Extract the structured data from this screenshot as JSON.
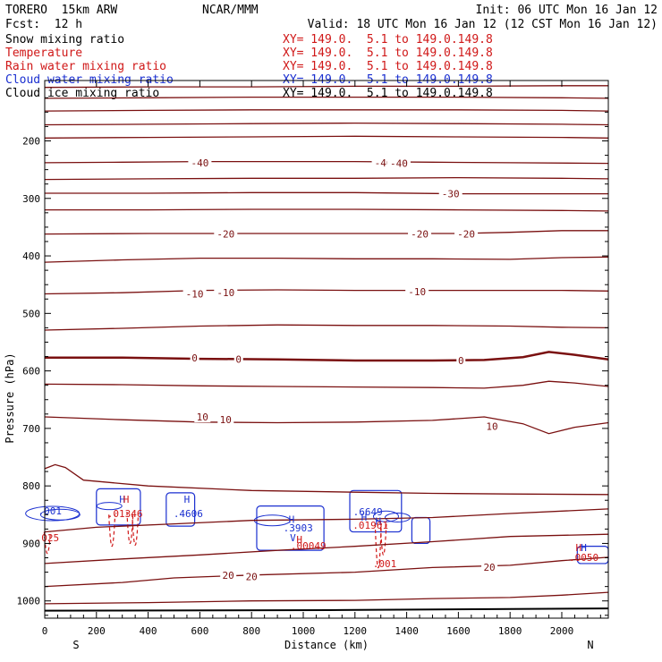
{
  "header": {
    "model": "TORERO  15km ARW",
    "org": "NCAR/MMM",
    "init": "Init: 06 UTC Mon 16 Jan 12",
    "fcst": "Fcst:  12 h",
    "valid": "Valid: 18 UTC Mon 16 Jan 12 (12 CST Mon 16 Jan 12)"
  },
  "legend": [
    {
      "label": "Snow mixing ratio",
      "xy": "XY= 149.0.  5.1 to 149.0.149.8",
      "color": "#000000"
    },
    {
      "label": "Temperature",
      "xy": "XY= 149.0.  5.1 to 149.0.149.8",
      "color": "#d01818"
    },
    {
      "label": "Rain water mixing ratio",
      "xy": "XY= 149.0.  5.1 to 149.0.149.8",
      "color": "#d01818"
    },
    {
      "label": "Cloud water mixing ratio",
      "xy": "XY= 149.0.  5.1 to 149.0.149.8",
      "color": "#1a2fd0"
    },
    {
      "label": "Cloud ice mixing ratio",
      "xy": "XY= 149.0.  5.1 to 149.0.149.8",
      "color": "#000000"
    }
  ],
  "chart_data": {
    "type": "line",
    "title": "Vertical cross section",
    "xlabel": "Distance (km)",
    "ylabel": "Pressure (hPa)",
    "xlim": [
      0,
      2180
    ],
    "ylim": [
      1030,
      95
    ],
    "x_ticks": [
      0,
      200,
      400,
      600,
      800,
      1000,
      1200,
      1400,
      1600,
      1800,
      2000
    ],
    "y_ticks": [
      200,
      300,
      400,
      500,
      600,
      700,
      800,
      900,
      1000
    ],
    "x_tick_labels": [
      "0",
      "200",
      "400",
      "600",
      "800",
      "1000",
      "1200",
      "1400",
      "1600",
      "1800",
      "2000"
    ],
    "y_tick_labels": [
      "200",
      "300",
      "400",
      "500",
      "600",
      "700",
      "800",
      "900",
      "1000"
    ],
    "endpoints": {
      "left": "S",
      "right": "N"
    },
    "temperature_isotherms": [
      {
        "t": -60,
        "p": [
          [
            0,
            107
          ],
          [
            400,
            106
          ],
          [
            800,
            106
          ],
          [
            1200,
            105
          ],
          [
            1600,
            105
          ],
          [
            2000,
            104
          ],
          [
            2180,
            104
          ]
        ]
      },
      {
        "t": -55,
        "p": [
          [
            0,
            126
          ],
          [
            400,
            125
          ],
          [
            800,
            124
          ],
          [
            1200,
            124
          ],
          [
            1600,
            124
          ],
          [
            2000,
            125
          ],
          [
            2180,
            126
          ]
        ]
      },
      {
        "t": -50,
        "p": [
          [
            0,
            148
          ],
          [
            400,
            147
          ],
          [
            800,
            146
          ],
          [
            1200,
            146
          ],
          [
            1600,
            146
          ],
          [
            2000,
            147
          ],
          [
            2180,
            148
          ]
        ]
      },
      {
        "t": -50,
        "p": [
          [
            0,
            172
          ],
          [
            400,
            171
          ],
          [
            800,
            170
          ],
          [
            1200,
            169
          ],
          [
            1600,
            170
          ],
          [
            2000,
            171
          ],
          [
            2180,
            172
          ]
        ]
      },
      {
        "t": -45,
        "p": [
          [
            0,
            195
          ],
          [
            400,
            194
          ],
          [
            800,
            193
          ],
          [
            1200,
            192
          ],
          [
            1600,
            193
          ],
          [
            2000,
            194
          ],
          [
            2180,
            195
          ]
        ]
      },
      {
        "t": -40,
        "p": [
          [
            0,
            238
          ],
          [
            300,
            237
          ],
          [
            600,
            236
          ],
          [
            900,
            236
          ],
          [
            1200,
            236
          ],
          [
            1500,
            237
          ],
          [
            1800,
            238
          ],
          [
            2180,
            239
          ]
        ]
      },
      {
        "t": -35,
        "p": [
          [
            0,
            267
          ],
          [
            400,
            266
          ],
          [
            800,
            265
          ],
          [
            1200,
            265
          ],
          [
            1600,
            264
          ],
          [
            2000,
            265
          ],
          [
            2180,
            266
          ]
        ]
      },
      {
        "t": -30,
        "p": [
          [
            0,
            291
          ],
          [
            400,
            291
          ],
          [
            800,
            290
          ],
          [
            1200,
            290
          ],
          [
            1600,
            292
          ],
          [
            2000,
            292
          ],
          [
            2180,
            292
          ]
        ]
      },
      {
        "t": -25,
        "p": [
          [
            0,
            320
          ],
          [
            400,
            320
          ],
          [
            800,
            319
          ],
          [
            1200,
            319
          ],
          [
            1600,
            320
          ],
          [
            2000,
            321
          ],
          [
            2180,
            322
          ]
        ]
      },
      {
        "t": -20,
        "p": [
          [
            0,
            362
          ],
          [
            400,
            361
          ],
          [
            800,
            361
          ],
          [
            1200,
            361
          ],
          [
            1600,
            361
          ],
          [
            1800,
            359
          ],
          [
            2000,
            356
          ],
          [
            2180,
            356
          ]
        ]
      },
      {
        "t": -15,
        "p": [
          [
            0,
            411
          ],
          [
            300,
            407
          ],
          [
            600,
            404
          ],
          [
            900,
            404
          ],
          [
            1200,
            405
          ],
          [
            1500,
            405
          ],
          [
            1800,
            406
          ],
          [
            2000,
            403
          ],
          [
            2180,
            402
          ]
        ]
      },
      {
        "t": -10,
        "p": [
          [
            0,
            466
          ],
          [
            300,
            464
          ],
          [
            600,
            460
          ],
          [
            900,
            459
          ],
          [
            1200,
            460
          ],
          [
            1500,
            460
          ],
          [
            1800,
            460
          ],
          [
            2000,
            460
          ],
          [
            2180,
            461
          ]
        ]
      },
      {
        "t": -5,
        "p": [
          [
            0,
            529
          ],
          [
            300,
            526
          ],
          [
            600,
            522
          ],
          [
            900,
            520
          ],
          [
            1200,
            521
          ],
          [
            1500,
            521
          ],
          [
            1800,
            522
          ],
          [
            2000,
            524
          ],
          [
            2180,
            525
          ]
        ]
      },
      {
        "t": 0,
        "p": [
          [
            0,
            577
          ],
          [
            300,
            577
          ],
          [
            600,
            579
          ],
          [
            900,
            580
          ],
          [
            1200,
            582
          ],
          [
            1500,
            582
          ],
          [
            1700,
            581
          ],
          [
            1850,
            576
          ],
          [
            1950,
            567
          ],
          [
            2050,
            572
          ],
          [
            2180,
            580
          ]
        ]
      },
      {
        "t": 5,
        "p": [
          [
            0,
            623
          ],
          [
            300,
            624
          ],
          [
            600,
            626
          ],
          [
            900,
            627
          ],
          [
            1200,
            628
          ],
          [
            1500,
            629
          ],
          [
            1700,
            630
          ],
          [
            1850,
            625
          ],
          [
            1950,
            618
          ],
          [
            2050,
            621
          ],
          [
            2180,
            627
          ]
        ]
      },
      {
        "t": 10,
        "p": [
          [
            0,
            680
          ],
          [
            300,
            685
          ],
          [
            600,
            689
          ],
          [
            900,
            690
          ],
          [
            1200,
            689
          ],
          [
            1500,
            686
          ],
          [
            1700,
            680
          ],
          [
            1850,
            692
          ],
          [
            1950,
            709
          ],
          [
            2050,
            698
          ],
          [
            2180,
            690
          ]
        ]
      },
      {
        "t": 15,
        "p": [
          [
            0,
            770
          ],
          [
            40,
            763
          ],
          [
            80,
            768
          ],
          [
            150,
            790
          ],
          [
            400,
            800
          ],
          [
            800,
            808
          ],
          [
            1200,
            811
          ],
          [
            1500,
            813
          ],
          [
            1800,
            814
          ],
          [
            2180,
            815
          ]
        ]
      },
      {
        "t": 20,
        "p": [
          [
            0,
            880
          ],
          [
            200,
            872
          ],
          [
            500,
            866
          ],
          [
            800,
            860
          ],
          [
            1200,
            858
          ],
          [
            1500,
            855
          ],
          [
            1800,
            848
          ],
          [
            2180,
            840
          ]
        ]
      },
      {
        "t": 25,
        "p": [
          [
            0,
            935
          ],
          [
            300,
            927
          ],
          [
            600,
            920
          ],
          [
            900,
            912
          ],
          [
            1200,
            905
          ],
          [
            1500,
            897
          ],
          [
            1800,
            888
          ],
          [
            2180,
            884
          ]
        ]
      },
      {
        "t": 20,
        "p": [
          [
            0,
            975
          ],
          [
            300,
            968
          ],
          [
            500,
            960
          ],
          [
            800,
            955
          ],
          [
            1200,
            950
          ],
          [
            1500,
            942
          ],
          [
            1800,
            938
          ],
          [
            2000,
            930
          ],
          [
            2180,
            924
          ]
        ]
      },
      {
        "t": 25,
        "p": [
          [
            0,
            1005
          ],
          [
            400,
            1003
          ],
          [
            800,
            1000
          ],
          [
            1200,
            999
          ],
          [
            1500,
            996
          ],
          [
            1800,
            994
          ],
          [
            2000,
            990
          ],
          [
            2180,
            985
          ]
        ]
      }
    ],
    "temperature_labels": [
      {
        "text": "-40",
        "x": 600,
        "p": 238
      },
      {
        "text": "-40",
        "x": 1310,
        "p": 238
      },
      {
        "text": "-40",
        "x": 1370,
        "p": 239
      },
      {
        "text": "-30",
        "x": 1570,
        "p": 292
      },
      {
        "text": "-20",
        "x": 700,
        "p": 362
      },
      {
        "text": "-20",
        "x": 1450,
        "p": 362
      },
      {
        "text": "-20",
        "x": 1630,
        "p": 362
      },
      {
        "text": "-10",
        "x": 580,
        "p": 466
      },
      {
        "text": "-10",
        "x": 700,
        "p": 464
      },
      {
        "text": "-10",
        "x": 1440,
        "p": 462
      },
      {
        "text": "0",
        "x": 580,
        "p": 577
      },
      {
        "text": "0",
        "x": 750,
        "p": 580
      },
      {
        "text": "0",
        "x": 1610,
        "p": 582
      },
      {
        "text": "10",
        "x": 610,
        "p": 680
      },
      {
        "text": "10",
        "x": 700,
        "p": 685
      },
      {
        "text": "10",
        "x": 1730,
        "p": 696
      },
      {
        "text": "20",
        "x": 710,
        "p": 955
      },
      {
        "text": "20",
        "x": 800,
        "p": 958
      },
      {
        "text": "20",
        "x": 1720,
        "p": 941
      }
    ],
    "cloud_water_labels": [
      {
        "text": ".001",
        "x": 20,
        "p": 843
      },
      {
        "text": "H",
        "x": 300,
        "p": 823
      },
      {
        "text": "H",
        "x": 550,
        "p": 823
      },
      {
        "text": ".4606",
        "x": 555,
        "p": 848
      },
      {
        "text": "H",
        "x": 955,
        "p": 858
      },
      {
        "text": ".3903",
        "x": 980,
        "p": 873
      },
      {
        "text": "V",
        "x": 960,
        "p": 890
      },
      {
        "text": "H",
        "x": 1235,
        "p": 854
      },
      {
        "text": ".6649",
        "x": 1250,
        "p": 845
      },
      {
        "text": "H",
        "x": 1290,
        "p": 861
      },
      {
        "text": "H",
        "x": 2085,
        "p": 907
      }
    ],
    "rain_labels": [
      {
        "text": "H",
        "x": 315,
        "p": 823
      },
      {
        "text": ".01346",
        "x": 310,
        "p": 848
      },
      {
        "text": ".025",
        "x": 10,
        "p": 890
      },
      {
        "text": "H",
        "x": 985,
        "p": 893
      },
      {
        "text": ".00049",
        "x": 1020,
        "p": 904
      },
      {
        "text": ".01961",
        "x": 1260,
        "p": 868
      },
      {
        "text": ".001",
        "x": 1315,
        "p": 935
      },
      {
        "text": "H",
        "x": 2065,
        "p": 907
      },
      {
        "text": ".0050",
        "x": 2085,
        "p": 924
      }
    ]
  }
}
